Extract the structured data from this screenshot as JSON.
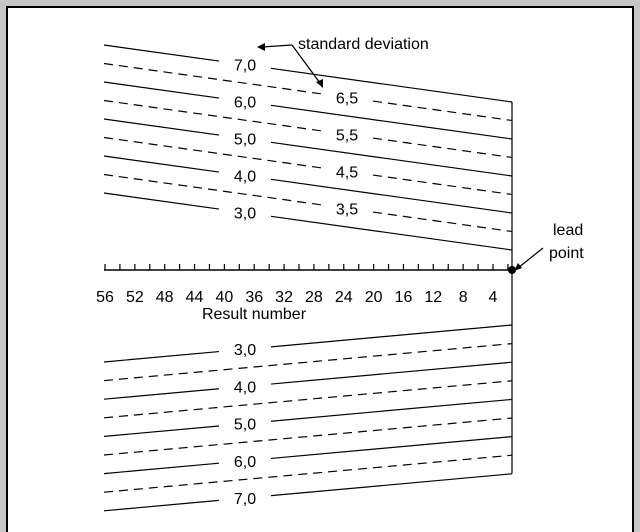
{
  "annotations": {
    "standard_deviation": "standard deviation",
    "lead": "lead",
    "point": "point"
  },
  "axis": {
    "label": "Result number",
    "ticks": [
      "56",
      "52",
      "48",
      "44",
      "40",
      "36",
      "32",
      "28",
      "24",
      "20",
      "16",
      "12",
      "8",
      "4"
    ]
  },
  "upper_lines": [
    {
      "label": "7,0",
      "style": "solid"
    },
    {
      "label": "6,5",
      "style": "dashed"
    },
    {
      "label": "6,0",
      "style": "solid"
    },
    {
      "label": "5,5",
      "style": "dashed"
    },
    {
      "label": "5,0",
      "style": "solid"
    },
    {
      "label": "4,5",
      "style": "dashed"
    },
    {
      "label": "4,0",
      "style": "solid"
    },
    {
      "label": "3,5",
      "style": "dashed"
    },
    {
      "label": "3,0",
      "style": "solid"
    }
  ],
  "lower_lines": [
    {
      "label": "3,0",
      "style": "solid"
    },
    {
      "label": "",
      "style": "dashed"
    },
    {
      "label": "4,0",
      "style": "solid"
    },
    {
      "label": "",
      "style": "dashed"
    },
    {
      "label": "5,0",
      "style": "solid"
    },
    {
      "label": "",
      "style": "dashed"
    },
    {
      "label": "6,0",
      "style": "solid"
    },
    {
      "label": "",
      "style": "dashed"
    },
    {
      "label": "7,0",
      "style": "solid"
    }
  ]
}
